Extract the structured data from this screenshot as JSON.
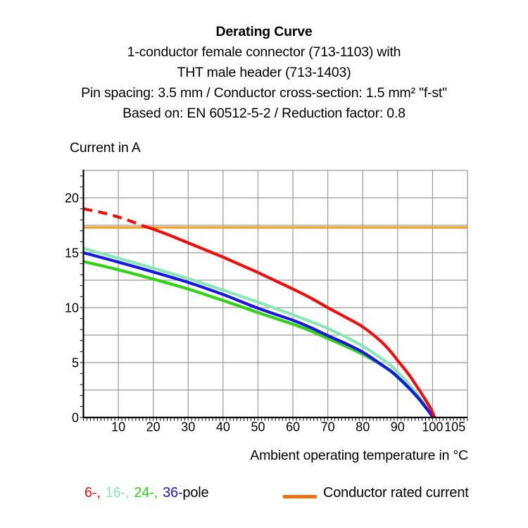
{
  "header": {
    "title": "Derating Curve",
    "subtitle1": "1-conductor female connector (713-1103) with",
    "subtitle2": "THT male header (713-1403)",
    "subtitle3": "Pin spacing: 3.5 mm / Conductor cross-section: 1.5 mm² \"f-st\"",
    "subtitle4": "Based on: EN 60512-5-2 / Reduction factor: 0.8"
  },
  "chart_data": {
    "type": "line",
    "title": "Derating Curve",
    "xlabel": "Ambient operating temperature in °C",
    "ylabel": "Current in A",
    "xlim": [
      0,
      110
    ],
    "ylim": [
      0,
      22.5
    ],
    "x_ticks_labeled": [
      10,
      20,
      30,
      40,
      50,
      60,
      70,
      80,
      90,
      100,
      105
    ],
    "y_ticks_labeled": [
      0,
      5,
      10,
      15,
      20
    ],
    "grid": {
      "on": true,
      "x_major_step": 10,
      "y_major_step": 2.5,
      "minor_tick_step_x": 1,
      "minor_tick_step_y": 1,
      "color": "#999999"
    },
    "rated_current_value": 17.3,
    "series": [
      {
        "name": "6-pole",
        "color": "#f20d0d",
        "style": "dashed-then-solid",
        "dashed_points": [
          [
            0,
            19.0
          ],
          [
            6,
            18.6
          ],
          [
            12,
            18.05
          ],
          [
            17,
            17.45
          ]
        ],
        "points": [
          [
            17,
            17.45
          ],
          [
            20,
            17.15
          ],
          [
            25,
            16.55
          ],
          [
            30,
            15.9
          ],
          [
            35,
            15.25
          ],
          [
            40,
            14.6
          ],
          [
            45,
            13.9
          ],
          [
            50,
            13.2
          ],
          [
            55,
            12.45
          ],
          [
            60,
            11.7
          ],
          [
            65,
            10.9
          ],
          [
            70,
            10.0
          ],
          [
            75,
            9.15
          ],
          [
            80,
            8.25
          ],
          [
            85,
            7.0
          ],
          [
            88,
            6.0
          ],
          [
            90,
            5.2
          ],
          [
            93,
            4.0
          ],
          [
            96,
            2.6
          ],
          [
            98,
            1.6
          ],
          [
            99.5,
            0.8
          ],
          [
            100.6,
            0
          ]
        ]
      },
      {
        "name": "16-pole",
        "color": "#87e7b5",
        "style": "solid",
        "points": [
          [
            0,
            15.4
          ],
          [
            10,
            14.5
          ],
          [
            20,
            13.6
          ],
          [
            30,
            12.65
          ],
          [
            40,
            11.6
          ],
          [
            50,
            10.5
          ],
          [
            60,
            9.35
          ],
          [
            65,
            8.75
          ],
          [
            70,
            8.1
          ],
          [
            75,
            7.35
          ],
          [
            80,
            6.5
          ],
          [
            85,
            5.45
          ],
          [
            88,
            4.75
          ],
          [
            90,
            4.1
          ],
          [
            92,
            3.5
          ],
          [
            94,
            2.75
          ],
          [
            96,
            1.95
          ],
          [
            98,
            1.1
          ],
          [
            100.3,
            0
          ]
        ]
      },
      {
        "name": "24-pole",
        "color": "#30d413",
        "style": "solid",
        "points": [
          [
            0,
            14.2
          ],
          [
            10,
            13.45
          ],
          [
            20,
            12.6
          ],
          [
            30,
            11.7
          ],
          [
            40,
            10.65
          ],
          [
            50,
            9.55
          ],
          [
            60,
            8.5
          ],
          [
            65,
            7.9
          ],
          [
            70,
            7.2
          ],
          [
            75,
            6.5
          ],
          [
            80,
            5.75
          ],
          [
            85,
            4.85
          ],
          [
            88,
            4.2
          ],
          [
            90,
            3.65
          ],
          [
            92,
            3.05
          ],
          [
            94,
            2.4
          ],
          [
            96,
            1.7
          ],
          [
            98,
            0.9
          ],
          [
            100.2,
            0
          ]
        ]
      },
      {
        "name": "36-pole",
        "color": "#1717e6",
        "style": "solid",
        "points": [
          [
            0,
            15.0
          ],
          [
            10,
            14.15
          ],
          [
            20,
            13.25
          ],
          [
            30,
            12.3
          ],
          [
            40,
            11.2
          ],
          [
            50,
            9.95
          ],
          [
            60,
            8.85
          ],
          [
            65,
            8.2
          ],
          [
            70,
            7.45
          ],
          [
            75,
            6.75
          ],
          [
            80,
            5.95
          ],
          [
            85,
            4.9
          ],
          [
            88,
            4.25
          ],
          [
            90,
            3.7
          ],
          [
            92,
            3.1
          ],
          [
            94,
            2.45
          ],
          [
            96,
            1.75
          ],
          [
            98,
            0.95
          ],
          [
            100.2,
            0
          ]
        ]
      },
      {
        "name": "Conductor rated current",
        "color": "#f59f24",
        "style": "solid",
        "points": [
          [
            0,
            17.3
          ],
          [
            110,
            17.3
          ]
        ]
      }
    ],
    "legend_position": "bottom"
  },
  "legend": {
    "poles": [
      {
        "label": "6-,",
        "color": "#f20d0d"
      },
      {
        "label": "16-,",
        "color": "#87e7b5"
      },
      {
        "label": "24-,",
        "color": "#30d413"
      },
      {
        "label": "36-",
        "color": "#1717e6"
      },
      {
        "label": "pole",
        "color": "#000000"
      }
    ],
    "rated": {
      "label": "Conductor rated current",
      "swatch_color": "#ed7013"
    }
  }
}
